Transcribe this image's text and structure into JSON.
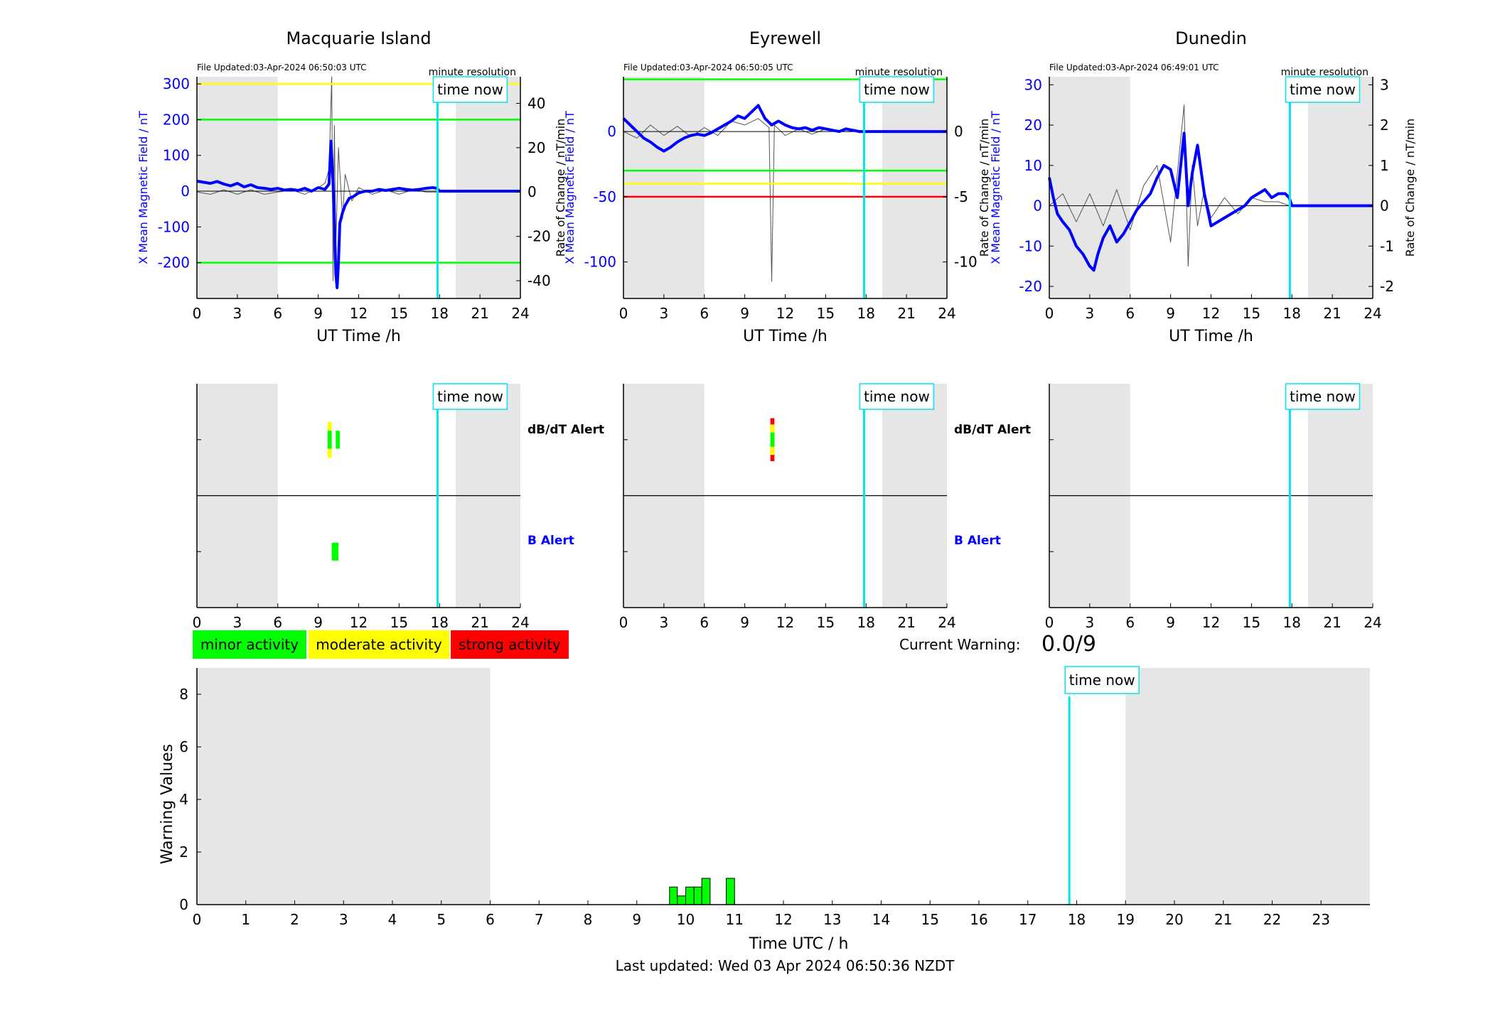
{
  "colors": {
    "field": "#0000ff",
    "rate": "#555555",
    "shade": "#e6e6e6",
    "now": "#00e5ee",
    "green": "#00ff00",
    "yellow": "#ffff00",
    "red": "#ff0000",
    "axis": "#000000"
  },
  "time_now_label": "time now",
  "alert_labels": {
    "dbdt": "dB/dT Alert",
    "b": "B Alert"
  },
  "legend": [
    "minor activity",
    "moderate activity",
    "strong activity"
  ],
  "current_warning": {
    "label": "Current Warning:",
    "value": "0.0/9"
  },
  "footer": "Last updated: Wed 03 Apr 2024 06:50:36 NZDT",
  "chart_data": [
    {
      "type": "line",
      "title": "Macquarie Island",
      "file_updated": "File Updated:03-Apr-2024 06:50:03 UTC",
      "resolution": "minute resolution",
      "xlabel": "UT Time /h",
      "ylabel": "X Mean Magnetic Field / nT",
      "y2label": "Rate of Change / nT/min",
      "xlim": [
        0,
        24
      ],
      "xticks": [
        0,
        3,
        6,
        9,
        12,
        15,
        18,
        21,
        24
      ],
      "ylim": [
        -300,
        320
      ],
      "yticks": [
        -200,
        -100,
        0,
        100,
        200,
        300
      ],
      "y2lim": [
        -48,
        52
      ],
      "y2ticks": [
        -40,
        -20,
        0,
        20,
        40
      ],
      "night_shading": [
        [
          0,
          6
        ],
        [
          19.2,
          24
        ]
      ],
      "time_now": 17.85,
      "thresholds": [
        {
          "value": 300,
          "color": "yellow"
        },
        {
          "value": 200,
          "color": "green"
        },
        {
          "value": -200,
          "color": "green"
        }
      ],
      "field_series": {
        "x": [
          0,
          0.5,
          1,
          1.5,
          2,
          2.5,
          3,
          3.5,
          4,
          4.5,
          5,
          5.5,
          6,
          6.5,
          7,
          7.5,
          8,
          8.5,
          9,
          9.5,
          9.8,
          9.95,
          10.1,
          10.2,
          10.3,
          10.4,
          10.5,
          10.6,
          10.8,
          11,
          11.3,
          11.6,
          12,
          12.5,
          13,
          13.5,
          14,
          14.5,
          15,
          15.5,
          16,
          16.5,
          17,
          17.5,
          17.8,
          18,
          24
        ],
        "y": [
          28,
          25,
          22,
          27,
          20,
          15,
          22,
          12,
          18,
          10,
          8,
          5,
          8,
          3,
          5,
          2,
          8,
          0,
          10,
          5,
          20,
          140,
          20,
          -80,
          -230,
          -270,
          -200,
          -90,
          -60,
          -40,
          -20,
          -15,
          -5,
          0,
          0,
          5,
          2,
          5,
          8,
          5,
          3,
          5,
          8,
          10,
          8,
          0,
          0
        ]
      },
      "rate_series": {
        "x": [
          0,
          1,
          2,
          3,
          4,
          5,
          6,
          7,
          8,
          9,
          9.5,
          9.8,
          10,
          10.1,
          10.2,
          10.3,
          10.5,
          10.8,
          11,
          11.5,
          12,
          13,
          14,
          15,
          16,
          17,
          17.8
        ],
        "y": [
          0,
          -1,
          1,
          -1,
          1,
          -1,
          0,
          1,
          -1,
          2,
          4,
          10,
          52,
          -40,
          30,
          -25,
          20,
          -12,
          8,
          -4,
          2,
          -1,
          1,
          -1,
          1,
          0,
          0
        ]
      },
      "alerts": {
        "dbdt": [
          {
            "x0": 9.7,
            "x1": 10.0,
            "color": "yellow",
            "height": 1.0
          },
          {
            "x0": 9.7,
            "x1": 10.0,
            "color": "green",
            "height": 0.5
          },
          {
            "x0": 10.3,
            "x1": 10.6,
            "color": "green",
            "height": 0.5
          }
        ],
        "b": [
          {
            "x0": 10.0,
            "x1": 10.5,
            "color": "green",
            "height": 0.5
          }
        ]
      }
    },
    {
      "type": "line",
      "title": "Eyrewell",
      "file_updated": "File Updated:03-Apr-2024 06:50:05 UTC",
      "resolution": "minute resolution",
      "xlabel": "UT Time /h",
      "ylabel": "X Mean Magnetic Field / nT",
      "y2label": "Rate of Change / nT/min",
      "xlim": [
        0,
        24
      ],
      "xticks": [
        0,
        3,
        6,
        9,
        12,
        15,
        18,
        21,
        24
      ],
      "ylim": [
        -128,
        42
      ],
      "yticks": [
        -100,
        -50,
        0
      ],
      "y2lim": [
        -12.8,
        4.2
      ],
      "y2ticks": [
        -10,
        -5,
        0
      ],
      "night_shading": [
        [
          0,
          6
        ],
        [
          19.2,
          24
        ]
      ],
      "time_now": 17.85,
      "thresholds": [
        {
          "value": 40,
          "color": "green"
        },
        {
          "value": -30,
          "color": "green"
        },
        {
          "value": -40,
          "color": "yellow"
        },
        {
          "value": -50,
          "color": "red"
        }
      ],
      "field_series": {
        "x": [
          0,
          0.5,
          1,
          1.5,
          2,
          2.5,
          3,
          3.5,
          4,
          4.5,
          5,
          5.5,
          6,
          6.5,
          7,
          7.5,
          8,
          8.5,
          9,
          9.5,
          10,
          10.5,
          11,
          11.5,
          12,
          12.5,
          13,
          13.5,
          14,
          14.5,
          15,
          15.5,
          16,
          16.5,
          17,
          17.5,
          17.8,
          18,
          24
        ],
        "y": [
          10,
          5,
          0,
          -5,
          -8,
          -12,
          -15,
          -12,
          -8,
          -5,
          -3,
          -2,
          -3,
          -1,
          2,
          5,
          8,
          12,
          10,
          15,
          20,
          10,
          5,
          8,
          5,
          3,
          2,
          3,
          1,
          3,
          2,
          1,
          0,
          2,
          1,
          0,
          0,
          0,
          0
        ]
      },
      "rate_series": {
        "x": [
          0,
          1,
          2,
          3,
          4,
          5,
          6,
          7,
          8,
          9,
          10,
          10.8,
          11,
          11.2,
          12,
          13,
          14,
          15,
          16,
          17,
          17.8
        ],
        "y": [
          0,
          -0.5,
          0.5,
          -0.3,
          0.4,
          -0.4,
          0.3,
          -0.3,
          0.8,
          0.5,
          1,
          0.3,
          -11.5,
          0.5,
          -0.3,
          0.2,
          -0.2,
          0.2,
          0,
          0,
          0
        ]
      },
      "alerts": {
        "dbdt": [
          {
            "x0": 10.9,
            "x1": 11.2,
            "color": "red",
            "height": 1.2
          },
          {
            "x0": 10.9,
            "x1": 11.2,
            "color": "yellow",
            "height": 0.85
          },
          {
            "x0": 10.9,
            "x1": 11.2,
            "color": "green",
            "height": 0.4
          }
        ],
        "b": []
      }
    },
    {
      "type": "line",
      "title": "Dunedin",
      "file_updated": "File Updated:03-Apr-2024 06:49:01 UTC",
      "resolution": "minute resolution",
      "xlabel": "UT Time /h",
      "ylabel": "X Mean Magnetic Field / nT",
      "y2label": "Rate of Change / nT/min",
      "xlim": [
        0,
        24
      ],
      "xticks": [
        0,
        3,
        6,
        9,
        12,
        15,
        18,
        21,
        24
      ],
      "ylim": [
        -23,
        32
      ],
      "yticks": [
        -20,
        -10,
        0,
        10,
        20,
        30
      ],
      "y2lim": [
        -2.3,
        3.2
      ],
      "y2ticks": [
        -2,
        -1,
        0,
        1,
        2,
        3
      ],
      "night_shading": [
        [
          0,
          6
        ],
        [
          19.2,
          24
        ]
      ],
      "time_now": 17.85,
      "thresholds": [],
      "field_series": {
        "x": [
          0,
          0.3,
          0.6,
          1,
          1.5,
          2,
          2.5,
          3,
          3.3,
          3.6,
          4,
          4.5,
          5,
          5.5,
          6,
          6.5,
          7,
          7.5,
          8,
          8.5,
          9,
          9.5,
          10,
          10.3,
          10.6,
          11,
          11.5,
          12,
          12.5,
          13,
          13.5,
          14,
          14.5,
          15,
          15.5,
          16,
          16.5,
          17,
          17.5,
          17.8,
          18,
          24
        ],
        "y": [
          7,
          2,
          -2,
          -4,
          -6,
          -10,
          -12,
          -15,
          -16,
          -12,
          -8,
          -5,
          -9,
          -7,
          -4,
          -1,
          1,
          3,
          7,
          10,
          9,
          2,
          18,
          0,
          8,
          15,
          3,
          -5,
          -4,
          -3,
          -2,
          -1,
          0,
          2,
          3,
          4,
          2,
          3,
          3,
          2,
          0,
          0
        ]
      },
      "rate_series": {
        "x": [
          0,
          1,
          2,
          3,
          4,
          5,
          6,
          7,
          8,
          9,
          9.5,
          10,
          10.3,
          10.6,
          11,
          11.5,
          12,
          13,
          14,
          15,
          16,
          17,
          17.8
        ],
        "y": [
          0,
          0.3,
          -0.4,
          0.3,
          -0.5,
          0.4,
          -0.6,
          0.5,
          1.0,
          -0.9,
          0.8,
          2.5,
          -1.5,
          1.0,
          -0.5,
          0.4,
          -0.3,
          0.2,
          -0.2,
          0.2,
          0.1,
          0.1,
          0
        ]
      },
      "alerts": {
        "dbdt": [],
        "b": []
      }
    },
    {
      "type": "bar",
      "xlabel": "Time UTC / h",
      "ylabel": "Warning Values",
      "xlim": [
        0,
        24
      ],
      "xticks": [
        0,
        1,
        2,
        3,
        4,
        5,
        6,
        7,
        8,
        9,
        10,
        11,
        12,
        13,
        14,
        15,
        16,
        17,
        18,
        19,
        20,
        21,
        22,
        23
      ],
      "ylim": [
        0,
        9
      ],
      "yticks": [
        0,
        2,
        4,
        6,
        8
      ],
      "night_shading": [
        [
          0,
          6
        ],
        [
          19,
          24
        ]
      ],
      "time_now": 17.85,
      "bars": [
        {
          "x0": 9.67,
          "x1": 9.83,
          "value": 0.67
        },
        {
          "x0": 9.83,
          "x1": 10.0,
          "value": 0.33
        },
        {
          "x0": 10.0,
          "x1": 10.17,
          "value": 0.67
        },
        {
          "x0": 10.17,
          "x1": 10.33,
          "value": 0.67
        },
        {
          "x0": 10.33,
          "x1": 10.5,
          "value": 1.0
        },
        {
          "x0": 10.83,
          "x1": 11.0,
          "value": 1.0
        }
      ]
    }
  ]
}
